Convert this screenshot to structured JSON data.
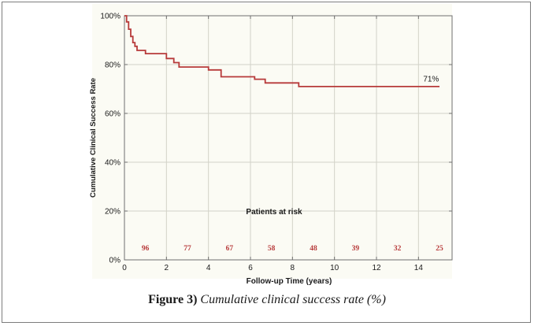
{
  "chart_data": {
    "type": "line",
    "xlabel": "Follow-up Time (years)",
    "ylabel": "Cumulative Clinical Success Rate",
    "xlim": [
      0,
      15.6
    ],
    "ylim": [
      0,
      100
    ],
    "x_ticks": [
      0,
      2,
      4,
      6,
      8,
      10,
      12,
      14
    ],
    "y_ticks": [
      0,
      20,
      40,
      60,
      80,
      100
    ],
    "y_tick_labels": [
      "0%",
      "20%",
      "40%",
      "60%",
      "80%",
      "100%"
    ],
    "grid": true,
    "line_color": "#b73a3a",
    "series": [
      {
        "points": [
          [
            0,
            100
          ],
          [
            0.1,
            100
          ],
          [
            0.1,
            97.5
          ],
          [
            0.2,
            97.5
          ],
          [
            0.2,
            94.5
          ],
          [
            0.3,
            94.5
          ],
          [
            0.3,
            91.5
          ],
          [
            0.4,
            91.5
          ],
          [
            0.4,
            89
          ],
          [
            0.5,
            89
          ],
          [
            0.5,
            87.5
          ],
          [
            0.6,
            87.5
          ],
          [
            0.6,
            85.8
          ],
          [
            1.0,
            85.8
          ],
          [
            1.0,
            84.5
          ],
          [
            2.0,
            84.5
          ],
          [
            2.0,
            82.5
          ],
          [
            2.35,
            82.5
          ],
          [
            2.35,
            80.8
          ],
          [
            2.6,
            80.8
          ],
          [
            2.6,
            79
          ],
          [
            4.0,
            79
          ],
          [
            4.0,
            77.8
          ],
          [
            4.6,
            77.8
          ],
          [
            4.6,
            75
          ],
          [
            6.2,
            75
          ],
          [
            6.2,
            74
          ],
          [
            6.7,
            74
          ],
          [
            6.7,
            72.5
          ],
          [
            8.3,
            72.5
          ],
          [
            8.3,
            71
          ],
          [
            15,
            71
          ]
        ]
      }
    ],
    "end_label": {
      "x": 14.6,
      "y": 74,
      "text": "71%"
    },
    "risk_table": {
      "title": "Patients at risk",
      "x": [
        1,
        3,
        5,
        7,
        9,
        11,
        13,
        15
      ],
      "values": [
        "96",
        "77",
        "67",
        "58",
        "48",
        "39",
        "32",
        "25"
      ]
    }
  },
  "caption": {
    "label": "Figure 3)",
    "text": " Cumulative clinical success rate (%)"
  }
}
